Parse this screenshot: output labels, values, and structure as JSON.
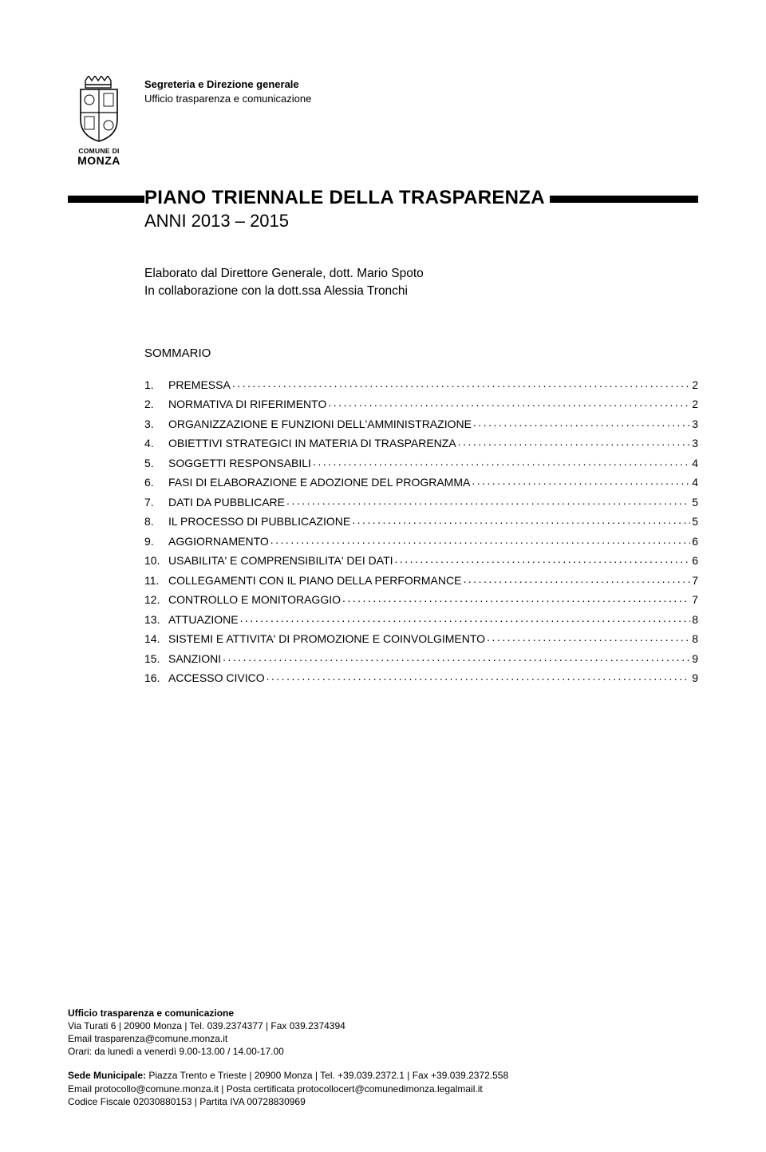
{
  "header": {
    "department": "Segreteria e Direzione generale",
    "office": "Ufficio trasparenza e comunicazione",
    "crest_top": "COMUNE DI",
    "crest_name": "MONZA"
  },
  "title": {
    "main": "PIANO TRIENNALE DELLA TRASPARENZA",
    "subtitle": "ANNI 2013 – 2015"
  },
  "author": {
    "line1": "Elaborato dal Direttore Generale, dott. Mario Spoto",
    "line2": "In collaborazione con la dott.ssa Alessia Tronchi"
  },
  "sommario_label": "SOMMARIO",
  "toc": [
    {
      "num": "1.",
      "label": "PREMESSA",
      "page": "2"
    },
    {
      "num": "2.",
      "label": "NORMATIVA DI RIFERIMENTO",
      "page": "2"
    },
    {
      "num": "3.",
      "label": "ORGANIZZAZIONE E FUNZIONI DELL'AMMINISTRAZIONE",
      "page": "3"
    },
    {
      "num": "4.",
      "label": "OBIETTIVI STRATEGICI IN MATERIA DI TRASPARENZA",
      "page": "3"
    },
    {
      "num": "5.",
      "label": "SOGGETTI RESPONSABILI",
      "page": "4"
    },
    {
      "num": "6.",
      "label": "FASI DI ELABORAZIONE E ADOZIONE DEL PROGRAMMA",
      "page": "4"
    },
    {
      "num": "7.",
      "label": "DATI DA PUBBLICARE",
      "page": "5"
    },
    {
      "num": "8.",
      "label": "IL PROCESSO DI PUBBLICAZIONE",
      "page": "5"
    },
    {
      "num": "9.",
      "label": "AGGIORNAMENTO",
      "page": "6"
    },
    {
      "num": "10.",
      "label": "USABILITA' E COMPRENSIBILITA' DEI DATI",
      "page": "6"
    },
    {
      "num": "11.",
      "label": "COLLEGAMENTI CON IL PIANO DELLA PERFORMANCE",
      "page": "7"
    },
    {
      "num": "12.",
      "label": "CONTROLLO E MONITORAGGIO",
      "page": "7"
    },
    {
      "num": "13.",
      "label": "ATTUAZIONE",
      "page": "8"
    },
    {
      "num": "14.",
      "label": "SISTEMI E ATTIVITA' DI PROMOZIONE E COINVOLGIMENTO",
      "page": "8"
    },
    {
      "num": "15.",
      "label": "SANZIONI",
      "page": "9"
    },
    {
      "num": "16.",
      "label": "ACCESSO CIVICO",
      "page": "9"
    }
  ],
  "footer": {
    "office_bold": "Ufficio trasparenza e comunicazione",
    "addr": "Via Turati 6 | 20900 Monza | Tel. 039.2374377 | Fax 039.2374394",
    "email": "Email trasparenza@comune.monza.it",
    "hours": "Orari: da lunedì a venerdì 9.00-13.00 / 14.00-17.00",
    "sede_bold": "Sede Municipale: ",
    "sede_rest": "Piazza Trento e Trieste | 20900 Monza | Tel. +39.039.2372.1 | Fax +39.039.2372.558",
    "email2": "Email protocollo@comune.monza.it | Posta certificata protocollocert@comunedimonza.legalmail.it",
    "codici": "Codice Fiscale 02030880153 | Partita IVA 00728830969"
  }
}
